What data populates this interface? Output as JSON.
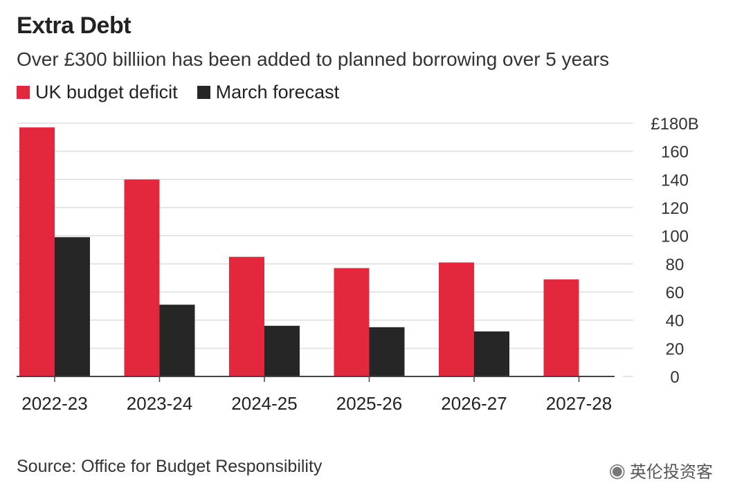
{
  "header": {
    "title": "Extra Debt",
    "subtitle": "Over £300 billiion has been added to planned borrowing over 5 years"
  },
  "footer": {
    "source": "Source: Office for Budget Responsibility",
    "watermark": "英伦投资客",
    "watermark_icon": "wechat-icon"
  },
  "colors": {
    "deficit": "#e3283e",
    "forecast": "#262626",
    "grid": "#dddddd",
    "axis": "#444444"
  },
  "chart_data": {
    "type": "bar",
    "title": "Extra Debt",
    "subtitle": "Over £300 billiion has been added to planned borrowing over 5 years",
    "categories": [
      "2022-23",
      "2023-24",
      "2024-25",
      "2025-26",
      "2026-27",
      "2027-28"
    ],
    "series": [
      {
        "name": "UK budget deficit",
        "values": [
          177,
          140,
          85,
          77,
          81,
          69
        ],
        "color": "#e3283e"
      },
      {
        "name": "March forecast",
        "values": [
          99,
          51,
          36,
          35,
          32,
          null
        ],
        "color": "#262626"
      }
    ],
    "ylim": [
      0,
      180
    ],
    "yticks": [
      0,
      20,
      40,
      60,
      80,
      100,
      120,
      140,
      160,
      180
    ],
    "ytick_labels": [
      "0",
      "20",
      "40",
      "60",
      "80",
      "100",
      "120",
      "140",
      "160",
      "£180B"
    ],
    "y_axis_side": "right",
    "grid": true,
    "legend": "top-left"
  }
}
